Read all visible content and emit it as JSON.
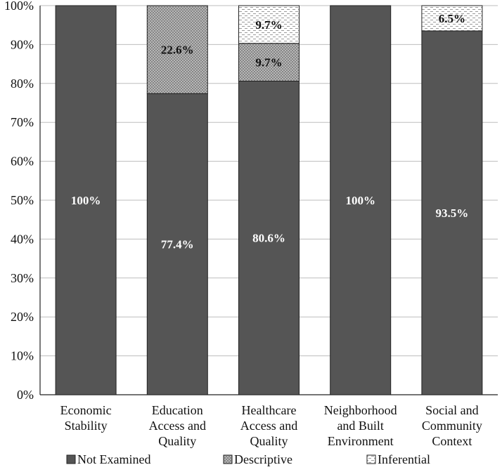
{
  "chart_data": {
    "type": "bar",
    "stacked": true,
    "title": "",
    "xlabel": "",
    "ylabel": "",
    "ylim": [
      0,
      100
    ],
    "y_ticks": [
      "0%",
      "10%",
      "20%",
      "30%",
      "40%",
      "50%",
      "60%",
      "70%",
      "80%",
      "90%",
      "100%"
    ],
    "categories": [
      [
        "Economic",
        "Stability"
      ],
      [
        "Education",
        "Access and",
        "Quality"
      ],
      [
        "Healthcare",
        "Access and",
        "Quality"
      ],
      [
        "Neighborhood",
        "and Built",
        "Environment"
      ],
      [
        "Social and",
        "Community",
        "Context"
      ]
    ],
    "series": [
      {
        "name": "Not Examined",
        "values": [
          100,
          77.4,
          80.6,
          100,
          93.5
        ],
        "labels": [
          "100%",
          "77.4%",
          "80.6%",
          "100%",
          "93.5%"
        ],
        "color": "#555555",
        "pattern": "solid"
      },
      {
        "name": "Descriptive",
        "values": [
          0,
          22.6,
          9.7,
          0,
          0
        ],
        "labels": [
          "",
          "22.6%",
          "9.7%",
          "",
          ""
        ],
        "color": "#bdbdbd",
        "pattern": "crosshatch"
      },
      {
        "name": "Inferential",
        "values": [
          0,
          0,
          9.7,
          0,
          6.5
        ],
        "labels": [
          "",
          "",
          "9.7%",
          "",
          "6.5%"
        ],
        "color": "#ffffff",
        "pattern": "dashes"
      }
    ],
    "legend_position": "bottom"
  }
}
